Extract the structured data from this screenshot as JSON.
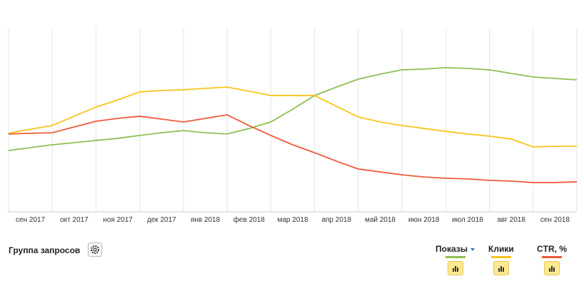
{
  "chart_data": {
    "type": "line",
    "categories": [
      null,
      "сен 2017",
      null,
      "окт 2017",
      null,
      "ноя 2017",
      null,
      "дек 2017",
      null,
      "янв 2018",
      null,
      "фев 2018",
      null,
      "мар 2018",
      null,
      "апр 2018",
      null,
      "май 2018",
      null,
      "июн 2018",
      null,
      "июл 2018",
      null,
      "авг 2018",
      null,
      "сен 2018",
      null
    ],
    "series": [
      {
        "name": "Показы",
        "color": "#8cc152",
        "values": [
          34.1,
          35.7,
          37.3,
          38.5,
          39.7,
          40.9,
          42.5,
          44.0,
          45.2,
          44.0,
          43.3,
          46.4,
          50.0,
          57.1,
          64.7,
          69.4,
          73.8,
          76.6,
          79.0,
          79.4,
          80.2,
          79.8,
          79.0,
          77.0,
          75.0,
          74.2,
          73.4
        ]
      },
      {
        "name": "Клики",
        "color": "#f7c31b",
        "values": [
          43.7,
          46.0,
          48.0,
          53.2,
          58.3,
          62.3,
          66.7,
          67.5,
          67.9,
          68.7,
          69.4,
          67.1,
          64.7,
          64.7,
          64.7,
          58.7,
          52.8,
          50.0,
          48.0,
          46.4,
          44.8,
          43.3,
          42.1,
          40.5,
          36.1,
          36.5,
          36.5
        ]
      },
      {
        "name": "CTR, %",
        "color": "#ef5a3c",
        "values": [
          43.3,
          43.7,
          44.0,
          47.2,
          50.4,
          52.0,
          53.2,
          51.6,
          50.0,
          52.0,
          54.0,
          48.0,
          42.5,
          37.3,
          32.9,
          28.2,
          23.8,
          22.2,
          20.6,
          19.4,
          18.7,
          18.3,
          17.5,
          17.1,
          16.3,
          16.3,
          16.7
        ]
      }
    ],
    "ylim": [
      0,
      100
    ],
    "group_label": "Группа запросов"
  }
}
